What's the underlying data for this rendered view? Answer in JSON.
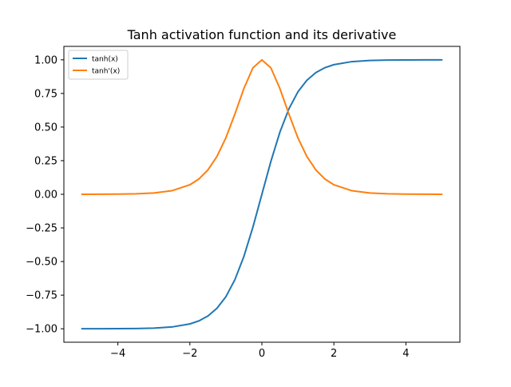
{
  "chart_data": {
    "type": "line",
    "title": "Tanh activation function and its derivative",
    "xlabel": "",
    "ylabel": "",
    "xlim": [
      -5.5,
      5.5
    ],
    "ylim": [
      -1.1,
      1.1
    ],
    "xticks": [
      -4,
      -2,
      0,
      2,
      4
    ],
    "xtick_labels": [
      "−4",
      "−2",
      "0",
      "2",
      "4"
    ],
    "yticks": [
      -1.0,
      -0.75,
      -0.5,
      -0.25,
      0.0,
      0.25,
      0.5,
      0.75,
      1.0
    ],
    "ytick_labels": [
      "−1.00",
      "−0.75",
      "−0.50",
      "−0.25",
      "0.00",
      "0.25",
      "0.50",
      "0.75",
      "1.00"
    ],
    "grid": false,
    "legend_position": "top-left",
    "series": [
      {
        "name": "tanh(x)",
        "color": "#1f77b4",
        "x": [
          -5,
          -4.5,
          -4,
          -3.5,
          -3,
          -2.5,
          -2,
          -1.75,
          -1.5,
          -1.25,
          -1,
          -0.75,
          -0.5,
          -0.25,
          0,
          0.25,
          0.5,
          0.75,
          1,
          1.25,
          1.5,
          1.75,
          2,
          2.5,
          3,
          3.5,
          4,
          4.5,
          5
        ],
        "y": [
          -0.9999,
          -0.9998,
          -0.9993,
          -0.9982,
          -0.9951,
          -0.9866,
          -0.964,
          -0.9414,
          -0.9051,
          -0.8483,
          -0.7616,
          -0.6351,
          -0.4621,
          -0.2449,
          0.0,
          0.2449,
          0.4621,
          0.6351,
          0.7616,
          0.8483,
          0.9051,
          0.9414,
          0.964,
          0.9866,
          0.9951,
          0.9982,
          0.9993,
          0.9998,
          0.9999
        ]
      },
      {
        "name": "tanh'(x)",
        "color": "#ff7f0e",
        "x": [
          -5,
          -4.5,
          -4,
          -3.5,
          -3,
          -2.5,
          -2,
          -1.75,
          -1.5,
          -1.25,
          -1,
          -0.75,
          -0.5,
          -0.25,
          0,
          0.25,
          0.5,
          0.75,
          1,
          1.25,
          1.5,
          1.75,
          2,
          2.5,
          3,
          3.5,
          4,
          4.5,
          5
        ],
        "y": [
          0.0002,
          0.0005,
          0.0013,
          0.0036,
          0.0099,
          0.0266,
          0.0707,
          0.1137,
          0.1807,
          0.2805,
          0.42,
          0.5966,
          0.7864,
          0.94,
          1.0,
          0.94,
          0.7864,
          0.5966,
          0.42,
          0.2805,
          0.1807,
          0.1137,
          0.0707,
          0.0266,
          0.0099,
          0.0036,
          0.0013,
          0.0005,
          0.0002
        ]
      }
    ]
  }
}
